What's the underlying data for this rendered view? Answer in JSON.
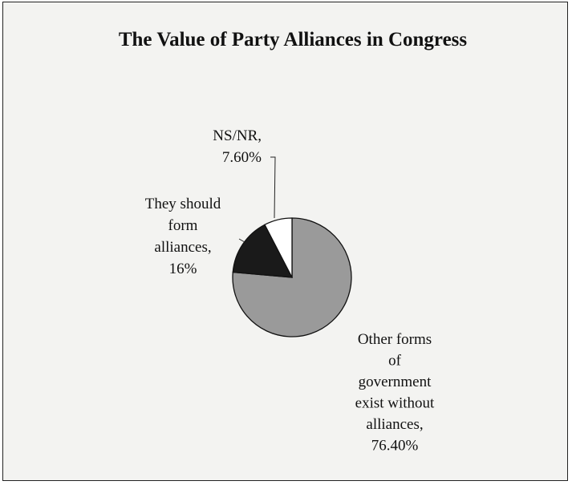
{
  "chart_data": {
    "type": "pie",
    "title": "The Value of Party Alliances in Congress",
    "slices": [
      {
        "label": "Other forms of government exist without alliances",
        "label_lines": [
          "Other forms",
          "of",
          "government",
          "exist without",
          "alliances,",
          "76.40%"
        ],
        "value": 76.4,
        "color": "#9a9a9a"
      },
      {
        "label": "They should form alliances",
        "label_lines": [
          "They should",
          "form",
          "alliances,",
          "16%"
        ],
        "value": 16,
        "color": "#1a1a1a"
      },
      {
        "label": "NS/NR",
        "label_lines": [
          "NS/NR,",
          "7.60%"
        ],
        "value": 7.6,
        "color": "#ffffff"
      }
    ],
    "legend": false
  }
}
